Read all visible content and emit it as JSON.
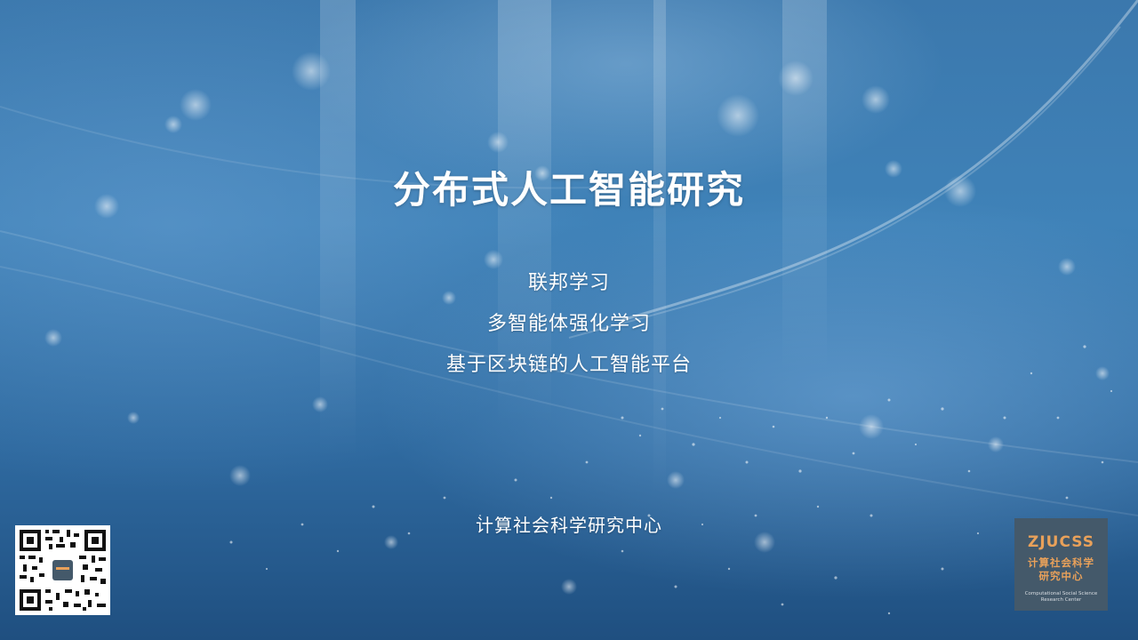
{
  "slide": {
    "title": "分布式人工智能研究",
    "topics": [
      "联邦学习",
      "多智能体强化学习",
      "基于区块链的人工智能平台"
    ],
    "center_name": "计算社会科学研究中心"
  },
  "logo": {
    "brand": "ZJUCSS",
    "cn_line1": "计算社会科学",
    "cn_line2": "研究中心",
    "en_text": "Computational Social Science Research Center"
  },
  "qr_code": {
    "icon": "qr-code-icon"
  },
  "colors": {
    "background": "#3f82b8",
    "text": "#ffffff",
    "logo_bg": "#44596a",
    "logo_accent": "#e9a15a"
  }
}
